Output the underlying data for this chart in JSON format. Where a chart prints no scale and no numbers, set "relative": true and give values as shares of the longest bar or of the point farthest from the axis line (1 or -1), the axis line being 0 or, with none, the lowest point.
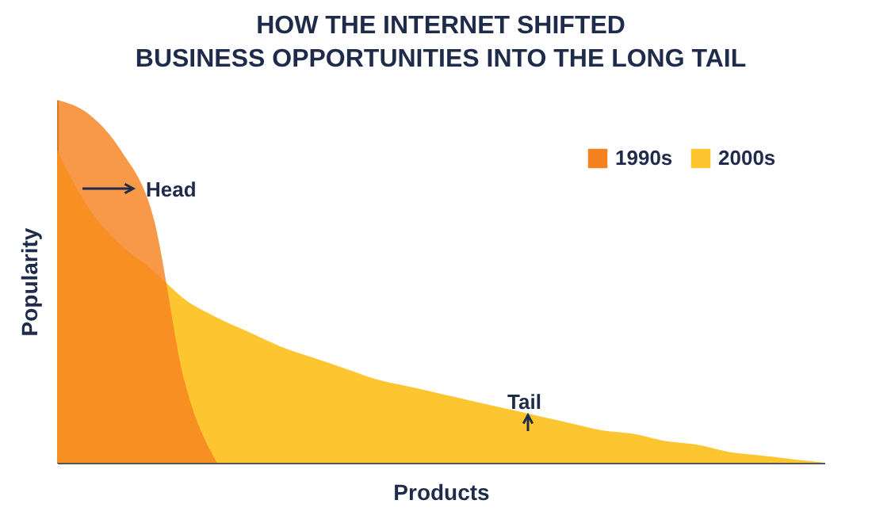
{
  "chart_data": {
    "type": "area",
    "title": "HOW THE INTERNET SHIFTED\nBUSINESS OPPORTUNITIES INTO THE LONG TAIL",
    "xlabel": "Products",
    "ylabel": "Popularity",
    "relative": true,
    "tick_labels": false,
    "legend": "top right",
    "grid": false,
    "categories": [
      null,
      null,
      null,
      null,
      null,
      null,
      null,
      null,
      null,
      null,
      null,
      null,
      null,
      null,
      null,
      null,
      null,
      null,
      null,
      null,
      null,
      null,
      null,
      null,
      null
    ],
    "series": [
      {
        "name": "1990s",
        "color": "#f58220",
        "values": [
          1.0,
          0.96,
          0.86,
          0.68,
          0.22,
          0,
          null,
          null,
          null,
          null,
          null,
          null,
          null,
          null,
          null,
          null,
          null,
          null,
          null,
          null,
          null,
          null,
          null,
          null,
          null
        ]
      },
      {
        "name": "2000s",
        "color": "#fdc530",
        "values": [
          0.86,
          0.7,
          0.6,
          0.53,
          0.45,
          0.4,
          0.36,
          0.32,
          0.29,
          0.26,
          0.23,
          0.21,
          0.19,
          0.17,
          0.15,
          0.13,
          0.11,
          0.09,
          0.08,
          0.06,
          0.05,
          0.03,
          0.02,
          0.01,
          0
        ]
      }
    ],
    "annotations": [
      "Head",
      "Tail"
    ]
  }
}
